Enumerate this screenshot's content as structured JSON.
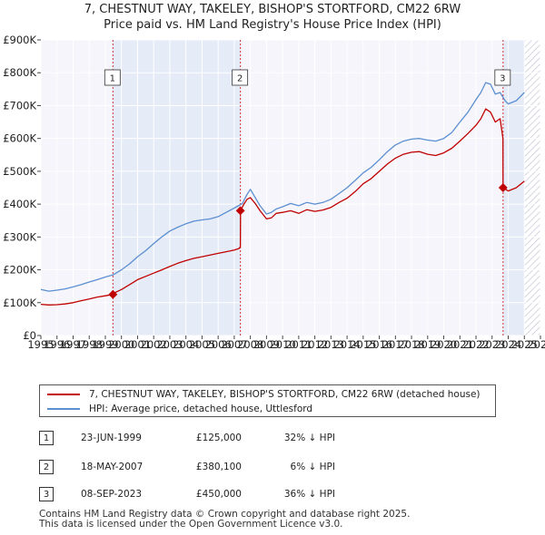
{
  "chart_data": {
    "type": "line",
    "title": "7, CHESTNUT WAY, TAKELEY, BISHOP'S STORTFORD, CM22 6RW",
    "subtitle": "Price paid vs. HM Land Registry's House Price Index (HPI)",
    "ylim": [
      0,
      900000
    ],
    "xlim": [
      1995,
      2026
    ],
    "y_ticks": [
      0,
      100000,
      200000,
      300000,
      400000,
      500000,
      600000,
      700000,
      800000,
      900000
    ],
    "y_tick_labels": [
      "£0",
      "£100K",
      "£200K",
      "£300K",
      "£400K",
      "£500K",
      "£600K",
      "£700K",
      "£800K",
      "£900K"
    ],
    "x_ticks": [
      1995,
      1996,
      1997,
      1998,
      1999,
      2000,
      2001,
      2002,
      2003,
      2004,
      2005,
      2006,
      2007,
      2008,
      2009,
      2010,
      2011,
      2012,
      2013,
      2014,
      2015,
      2016,
      2017,
      2018,
      2019,
      2020,
      2021,
      2022,
      2023,
      2024,
      2025,
      2026
    ],
    "x_tick_labels": [
      "1995",
      "1996",
      "1997",
      "1998",
      "1999",
      "2000",
      "2001",
      "2002",
      "2003",
      "2004",
      "2005",
      "2006",
      "2007",
      "2008",
      "2009",
      "2010",
      "2011",
      "2012",
      "2013",
      "2014",
      "2015",
      "2016",
      "2017",
      "2018",
      "2019",
      "2020",
      "2021",
      "2022",
      "2023",
      "2024",
      "2025",
      "2026"
    ],
    "grid": true,
    "shaded_periods": [
      [
        1999.47,
        2007.38
      ],
      [
        2023.68,
        2025.0
      ]
    ],
    "forecast_hatch": [
      2025.0,
      2026.0
    ],
    "series": [
      {
        "name": "7, CHESTNUT WAY, TAKELEY, BISHOP'S STORTFORD, CM22 6RW (detached house)",
        "color": "#c00000",
        "x": [
          1995.0,
          1995.5,
          1996.0,
          1996.5,
          1997.0,
          1997.5,
          1998.0,
          1998.5,
          1999.0,
          1999.47,
          1999.48,
          2000.0,
          2000.5,
          2001.0,
          2001.5,
          2002.0,
          2002.5,
          2003.0,
          2003.5,
          2004.0,
          2004.5,
          2005.0,
          2005.5,
          2006.0,
          2006.5,
          2007.0,
          2007.3,
          2007.38,
          2007.39,
          2007.6,
          2007.8,
          2008.0,
          2008.3,
          2008.6,
          2009.0,
          2009.3,
          2009.6,
          2010.0,
          2010.5,
          2011.0,
          2011.5,
          2012.0,
          2012.5,
          2013.0,
          2013.5,
          2014.0,
          2014.5,
          2015.0,
          2015.5,
          2016.0,
          2016.5,
          2017.0,
          2017.5,
          2018.0,
          2018.5,
          2019.0,
          2019.5,
          2020.0,
          2020.5,
          2021.0,
          2021.5,
          2022.0,
          2022.3,
          2022.6,
          2022.9,
          2023.2,
          2023.5,
          2023.67,
          2023.68,
          2024.0,
          2024.5,
          2025.0
        ],
        "values": [
          95000,
          93000,
          94000,
          96000,
          100000,
          106000,
          111000,
          117000,
          121000,
          125000,
          128000,
          140000,
          155000,
          170000,
          180000,
          190000,
          200000,
          210000,
          220000,
          228000,
          235000,
          240000,
          245000,
          250000,
          255000,
          260000,
          265000,
          270000,
          380100,
          400000,
          415000,
          420000,
          402000,
          380000,
          355000,
          358000,
          372000,
          375000,
          380000,
          372000,
          383000,
          378000,
          382000,
          390000,
          405000,
          418000,
          438000,
          462000,
          478000,
          500000,
          522000,
          540000,
          552000,
          558000,
          560000,
          552000,
          548000,
          556000,
          570000,
          592000,
          615000,
          640000,
          660000,
          690000,
          680000,
          650000,
          660000,
          600000,
          450000,
          440000,
          450000,
          470000
        ]
      },
      {
        "name": "HPI: Average price, detached house, Uttlesford",
        "color": "#5b8fd0",
        "x": [
          1995.0,
          1995.5,
          1996.0,
          1996.5,
          1997.0,
          1997.5,
          1998.0,
          1998.5,
          1999.0,
          1999.5,
          2000.0,
          2000.5,
          2001.0,
          2001.5,
          2002.0,
          2002.5,
          2003.0,
          2003.5,
          2004.0,
          2004.5,
          2005.0,
          2005.5,
          2006.0,
          2006.5,
          2007.0,
          2007.5,
          2007.8,
          2008.0,
          2008.3,
          2008.6,
          2009.0,
          2009.3,
          2009.6,
          2010.0,
          2010.5,
          2011.0,
          2011.5,
          2012.0,
          2012.5,
          2013.0,
          2013.5,
          2014.0,
          2014.5,
          2015.0,
          2015.5,
          2016.0,
          2016.5,
          2017.0,
          2017.5,
          2018.0,
          2018.5,
          2019.0,
          2019.5,
          2020.0,
          2020.5,
          2021.0,
          2021.5,
          2022.0,
          2022.3,
          2022.6,
          2022.9,
          2023.2,
          2023.5,
          2023.8,
          2024.0,
          2024.5,
          2025.0
        ],
        "values": [
          140000,
          135000,
          138000,
          142000,
          148000,
          155000,
          163000,
          170000,
          178000,
          185000,
          200000,
          218000,
          240000,
          258000,
          280000,
          300000,
          318000,
          330000,
          340000,
          348000,
          352000,
          355000,
          362000,
          375000,
          388000,
          402000,
          430000,
          445000,
          420000,
          395000,
          370000,
          375000,
          385000,
          392000,
          402000,
          395000,
          405000,
          400000,
          405000,
          415000,
          432000,
          450000,
          472000,
          495000,
          512000,
          535000,
          560000,
          580000,
          592000,
          598000,
          600000,
          595000,
          592000,
          600000,
          618000,
          650000,
          680000,
          718000,
          740000,
          770000,
          765000,
          735000,
          740000,
          715000,
          705000,
          715000,
          740000
        ]
      }
    ],
    "transactions": [
      {
        "num": "1",
        "x": 1999.47,
        "value": 125000
      },
      {
        "num": "2",
        "x": 2007.38,
        "value": 380100
      },
      {
        "num": "3",
        "x": 2023.68,
        "value": 450000
      }
    ]
  },
  "legend": {
    "property_label": "7, CHESTNUT WAY, TAKELEY, BISHOP'S STORTFORD, CM22 6RW (detached house)",
    "hpi_label": "HPI: Average price, detached house, Uttlesford",
    "property_color": "#c00000",
    "hpi_color": "#5b8fd0"
  },
  "table": [
    {
      "num": "1",
      "date": "23-JUN-1999",
      "price": "£125,000",
      "hpi": "32% ↓ HPI"
    },
    {
      "num": "2",
      "date": "18-MAY-2007",
      "price": "£380,100",
      "hpi": "6% ↓ HPI"
    },
    {
      "num": "3",
      "date": "08-SEP-2023",
      "price": "£450,000",
      "hpi": "36% ↓ HPI"
    }
  ],
  "footer": {
    "line1": "Contains HM Land Registry data © Crown copyright and database right 2025.",
    "line2": "This data is licensed under the Open Government Licence v3.0."
  }
}
